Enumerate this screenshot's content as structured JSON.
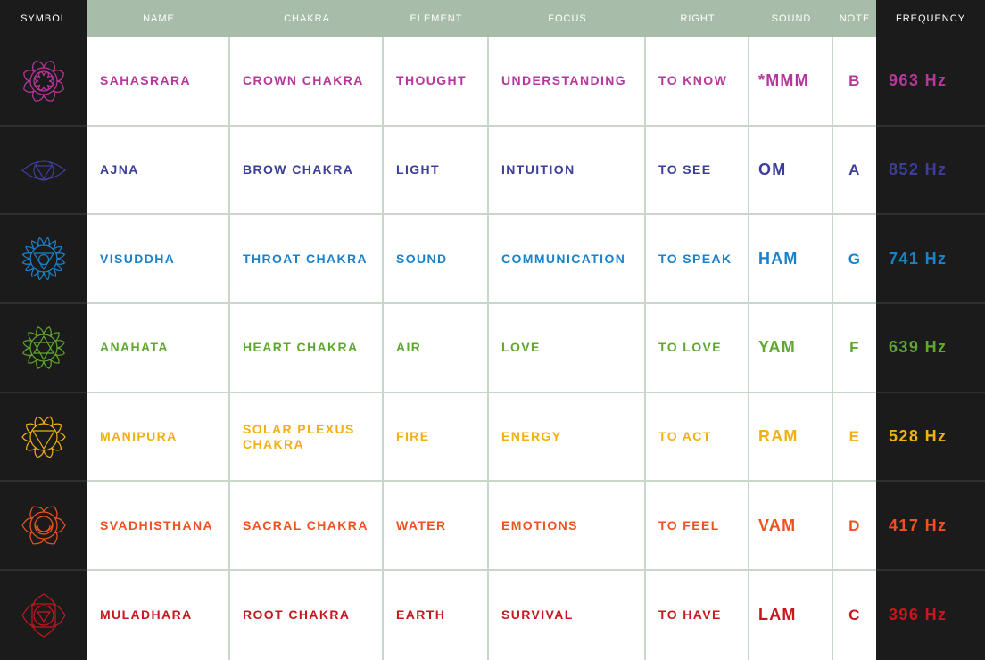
{
  "headers": {
    "symbol": "SYMBOL",
    "name": "NAME",
    "chakra": "CHAKRA",
    "element": "ELEMENT",
    "focus": "FOCUS",
    "right": "RIGHT",
    "sound": "SOUND",
    "note": "NOTE",
    "frequency": "FREQUENCY"
  },
  "rows": [
    {
      "symbol_icon": "sahasrara-lotus-icon",
      "color": "#b6379c",
      "name": "SAHASRARA",
      "chakra": "CROWN CHAKRA",
      "element": "THOUGHT",
      "focus": "UNDERSTANDING",
      "right": "TO KNOW",
      "sound": "*MMM",
      "note": "B",
      "frequency": "963 Hz"
    },
    {
      "symbol_icon": "ajna-eye-icon",
      "color": "#3c3e98",
      "name": "AJNA",
      "chakra": "BROW CHAKRA",
      "element": "LIGHT",
      "focus": "INTUITION",
      "right": "TO SEE",
      "sound": "OM",
      "note": "A",
      "frequency": "852 Hz"
    },
    {
      "symbol_icon": "visuddha-lotus-icon",
      "color": "#1a82c9",
      "name": "VISUDDHA",
      "chakra": "THROAT CHAKRA",
      "element": "SOUND",
      "focus": "COMMUNICATION",
      "right": "TO SPEAK",
      "sound": "HAM",
      "note": "G",
      "frequency": "741 Hz"
    },
    {
      "symbol_icon": "anahata-hexagram-icon",
      "color": "#5fa82f",
      "name": "ANAHATA",
      "chakra": "HEART CHAKRA",
      "element": "AIR",
      "focus": "LOVE",
      "right": "TO LOVE",
      "sound": "YAM",
      "note": "F",
      "frequency": "639 Hz"
    },
    {
      "symbol_icon": "manipura-triangle-icon",
      "color": "#f0b012",
      "name": "MANIPURA",
      "chakra": "SOLAR PLEXUS CHAKRA",
      "element": "FIRE",
      "focus": "ENERGY",
      "right": "TO ACT",
      "sound": "RAM",
      "note": "E",
      "frequency": "528 Hz"
    },
    {
      "symbol_icon": "svadhisthana-crescent-icon",
      "color": "#ef5121",
      "name": "SVADHISTHANA",
      "chakra": "SACRAL CHAKRA",
      "element": "WATER",
      "focus": "EMOTIONS",
      "right": "TO FEEL",
      "sound": "VAM",
      "note": "D",
      "frequency": "417 Hz"
    },
    {
      "symbol_icon": "muladhara-square-icon",
      "color": "#c8171e",
      "name": "MULADHARA",
      "chakra": "ROOT CHAKRA",
      "element": "EARTH",
      "focus": "SURVIVAL",
      "right": "TO HAVE",
      "sound": "LAM",
      "note": "C",
      "frequency": "396 Hz"
    }
  ]
}
